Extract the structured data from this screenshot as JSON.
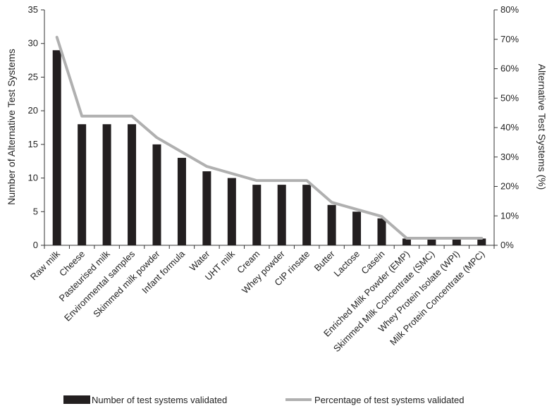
{
  "chart_data": {
    "type": "bar",
    "categories": [
      "Raw milk",
      "Cheese",
      "Pasteurised milk",
      "Environmental samples",
      "Skimmed milk powder",
      "Infant formula",
      "Water",
      "UHT milk",
      "Cream",
      "Whey powder",
      "CIP rinsate",
      "Butter",
      "Lactose",
      "Casein",
      "Enriched Milk Powder (EMP)",
      "Skimmed Milk Concentrate (SMC)",
      "Whey Protein Isolate (WPI)",
      "Milk Protein Concentrate (MPC)"
    ],
    "series": [
      {
        "name": "Number of test systems validated",
        "type": "bar",
        "axis": "left",
        "values": [
          29,
          18,
          18,
          18,
          15,
          13,
          11,
          10,
          9,
          9,
          9,
          6,
          5,
          4,
          1,
          1,
          1,
          1
        ]
      },
      {
        "name": "Percentage of test systems validated",
        "type": "line",
        "axis": "right",
        "values": [
          70.7,
          43.9,
          43.9,
          43.9,
          36.6,
          31.7,
          26.8,
          24.4,
          22.0,
          22.0,
          22.0,
          14.6,
          12.2,
          9.8,
          2.4,
          2.4,
          2.4,
          2.4
        ]
      }
    ],
    "title": "",
    "ylabel": "Number of Alternative Test Systems",
    "y2label": "Alternative Test Systems (%)",
    "ylim": [
      0,
      35
    ],
    "y2lim": [
      0,
      80
    ],
    "yticks": [
      "0",
      "5",
      "10",
      "15",
      "20",
      "25",
      "30",
      "35"
    ],
    "y2ticks": [
      "0%",
      "10%",
      "20%",
      "30%",
      "40%",
      "50%",
      "60%",
      "70%",
      "80%"
    ],
    "grid": false,
    "legend": "bottom",
    "colors": {
      "bar": "#231f20",
      "line": "#b0b0b0",
      "axis": "#333333"
    }
  }
}
